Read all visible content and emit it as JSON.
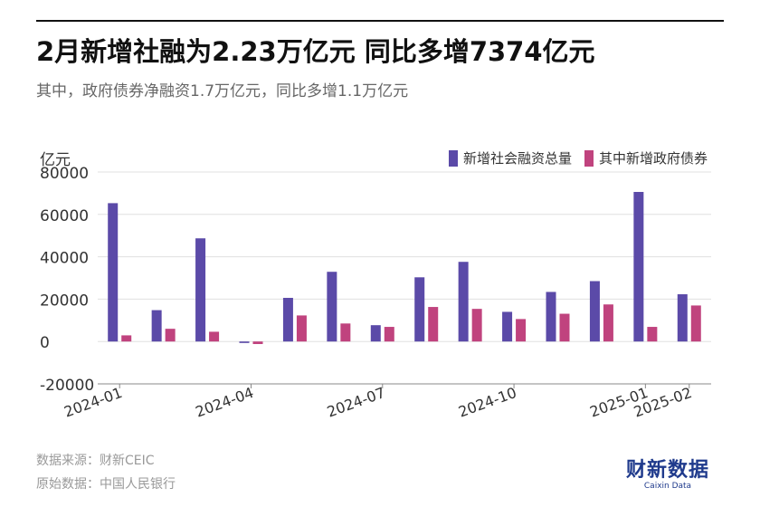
{
  "title": "2月新增社融为2.23万亿元 同比多增7374亿元",
  "subtitle": "其中，政府债券净融资1.7万亿元，同比多增1.1万亿元",
  "colors": {
    "series1": "#5b4aa8",
    "series2": "#c0437e",
    "grid": "#e0e0e0",
    "axis": "#888888"
  },
  "footer": {
    "source": "数据来源：财新CEIC",
    "origin": "原始数据：中国人民银行"
  },
  "logo": {
    "cn": "财新数据",
    "en": "Caixin Data"
  },
  "chart_data": {
    "type": "bar",
    "ylabel": "亿元",
    "ylim": [
      -20000,
      80000
    ],
    "yticks": [
      -20000,
      0,
      20000,
      40000,
      60000,
      80000
    ],
    "grid": true,
    "legend_position": "top-right",
    "x_tick_labels": [
      "2024-01",
      "2024-04",
      "2024-07",
      "2024-10",
      "2025-01",
      "2025-02"
    ],
    "categories": [
      "2024-01",
      "2024-02",
      "2024-03",
      "2024-04",
      "2024-05",
      "2024-06",
      "2024-07",
      "2024-08",
      "2024-09",
      "2024-10",
      "2024-11",
      "2024-12",
      "2025-01",
      "2025-02"
    ],
    "series": [
      {
        "name": "新增社会融资总量",
        "values": [
          65300,
          14800,
          48700,
          -700,
          20600,
          32900,
          7700,
          30300,
          37600,
          14000,
          23400,
          28500,
          70600,
          22300
        ]
      },
      {
        "name": "其中新增政府债券",
        "values": [
          2900,
          6000,
          4600,
          -1200,
          12300,
          8500,
          6900,
          16300,
          15400,
          10600,
          13100,
          17500,
          6900,
          17000
        ]
      }
    ]
  }
}
